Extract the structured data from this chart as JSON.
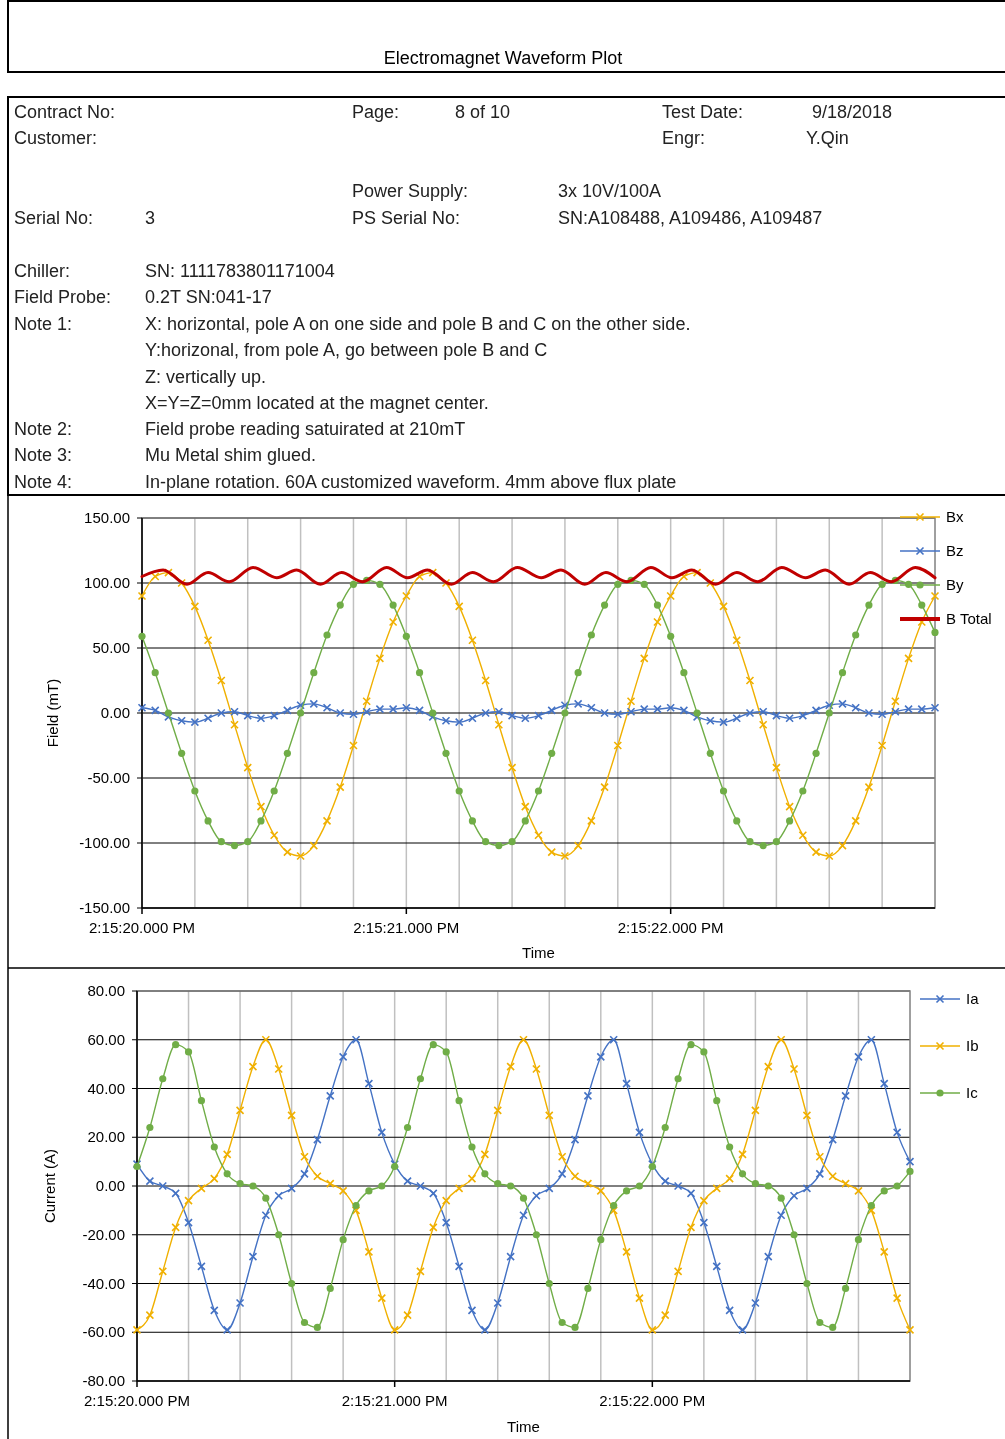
{
  "chart_data": [
    {
      "type": "other",
      "title": "Electromagnet Waveform Plot",
      "annotations": [
        "Contract No:",
        "Page:",
        "8 of 10",
        "Test Date:",
        "9/18/2018",
        "Customer:",
        "Engr:",
        "Y.Qin",
        "Serial No:",
        "3",
        "Power Supply:",
        "3x 10V/100A",
        "PS Serial No:",
        "SN:A108488, A109486, A109487",
        "Chiller:",
        "SN: 1111783801171004",
        "Field Probe:",
        "0.2T SN:041-17",
        "Note 1:",
        "X: horizontal, pole A on one side and pole B and C on the other side.",
        "Y:horizonal, from pole A, go between pole B and C",
        "Z: vertically up.",
        "X=Y=Z=0mm located at the magnet center.",
        "Note 2:",
        "Field probe reading satuirated at 210mT",
        "Note 3:",
        "Mu Metal shim glued.",
        "Note 4:",
        "In-plane rotation. 60A customized waveform. 4mm above flux plate"
      ]
    },
    {
      "type": "line",
      "xlabel": "Time",
      "ylabel": "Field (mT)",
      "grid": true,
      "legend": "right",
      "xlim": [
        "2018-09-18T14:15:20.000",
        "2018-09-18T14:15:23.000"
      ],
      "ylim": [
        -150,
        150
      ],
      "yticks": [
        {
          "value": -150,
          "label": "-150.00"
        },
        {
          "value": -100,
          "label": "-100.00"
        },
        {
          "value": -50,
          "label": "-50.00"
        },
        {
          "value": 0,
          "label": "0.00"
        },
        {
          "value": 50,
          "label": "50.00"
        },
        {
          "value": 100,
          "label": "100.00"
        },
        {
          "value": 150,
          "label": "150.00"
        }
      ],
      "xticks": [
        {
          "value": "2018-09-18T14:15:20.000",
          "label": "2:15:20.000 PM"
        },
        {
          "value": "2018-09-18T14:15:20.200",
          "label": null
        },
        {
          "value": "2018-09-18T14:15:20.400",
          "label": null
        },
        {
          "value": "2018-09-18T14:15:20.600",
          "label": null
        },
        {
          "value": "2018-09-18T14:15:20.800",
          "label": null
        },
        {
          "value": "2018-09-18T14:15:21.000",
          "label": "2:15:21.000 PM"
        },
        {
          "value": "2018-09-18T14:15:21.200",
          "label": null
        },
        {
          "value": "2018-09-18T14:15:21.400",
          "label": null
        },
        {
          "value": "2018-09-18T14:15:21.600",
          "label": null
        },
        {
          "value": "2018-09-18T14:15:21.800",
          "label": null
        },
        {
          "value": "2018-09-18T14:15:22.000",
          "label": "2:15:22.000 PM"
        },
        {
          "value": "2018-09-18T14:15:22.200",
          "label": null
        },
        {
          "value": "2018-09-18T14:15:22.400",
          "label": null
        },
        {
          "value": "2018-09-18T14:15:22.600",
          "label": null
        },
        {
          "value": "2018-09-18T14:15:22.800",
          "label": null
        }
      ],
      "x": [
        "2018-09-18T14:15:20.000",
        "2018-09-18T14:15:20.050",
        "2018-09-18T14:15:20.100",
        "2018-09-18T14:15:20.150",
        "2018-09-18T14:15:20.200",
        "2018-09-18T14:15:20.250",
        "2018-09-18T14:15:20.300",
        "2018-09-18T14:15:20.350",
        "2018-09-18T14:15:20.400",
        "2018-09-18T14:15:20.450",
        "2018-09-18T14:15:20.500",
        "2018-09-18T14:15:20.550",
        "2018-09-18T14:15:20.600",
        "2018-09-18T14:15:20.650",
        "2018-09-18T14:15:20.700",
        "2018-09-18T14:15:20.750",
        "2018-09-18T14:15:20.800",
        "2018-09-18T14:15:20.850",
        "2018-09-18T14:15:20.900",
        "2018-09-18T14:15:20.950",
        "2018-09-18T14:15:21.000",
        "2018-09-18T14:15:21.050",
        "2018-09-18T14:15:21.100",
        "2018-09-18T14:15:21.150",
        "2018-09-18T14:15:21.200",
        "2018-09-18T14:15:21.250",
        "2018-09-18T14:15:21.300",
        "2018-09-18T14:15:21.350",
        "2018-09-18T14:15:21.400",
        "2018-09-18T14:15:21.450",
        "2018-09-18T14:15:21.500",
        "2018-09-18T14:15:21.550",
        "2018-09-18T14:15:21.600",
        "2018-09-18T14:15:21.650",
        "2018-09-18T14:15:21.700",
        "2018-09-18T14:15:21.750",
        "2018-09-18T14:15:21.800",
        "2018-09-18T14:15:21.850",
        "2018-09-18T14:15:21.900",
        "2018-09-18T14:15:21.950",
        "2018-09-18T14:15:22.000",
        "2018-09-18T14:15:22.050",
        "2018-09-18T14:15:22.100",
        "2018-09-18T14:15:22.150",
        "2018-09-18T14:15:22.200",
        "2018-09-18T14:15:22.250",
        "2018-09-18T14:15:22.300",
        "2018-09-18T14:15:22.350",
        "2018-09-18T14:15:22.400",
        "2018-09-18T14:15:22.450",
        "2018-09-18T14:15:22.500",
        "2018-09-18T14:15:22.550",
        "2018-09-18T14:15:22.600",
        "2018-09-18T14:15:22.650",
        "2018-09-18T14:15:22.700",
        "2018-09-18T14:15:22.750",
        "2018-09-18T14:15:22.800",
        "2018-09-18T14:15:22.850",
        "2018-09-18T14:15:22.900",
        "2018-09-18T14:15:22.950",
        "2018-09-18T14:15:23.000"
      ],
      "series": [
        {
          "name": "Bx",
          "color": "#f0b000",
          "marker": "cross",
          "values": [
            90,
            105,
            108,
            100,
            82,
            56,
            25,
            -9,
            -42,
            -72,
            -94,
            -107,
            -110,
            -102,
            -83,
            -57,
            -25,
            9,
            42,
            70,
            90,
            105,
            108,
            100,
            82,
            56,
            25,
            -9,
            -42,
            -72,
            -94,
            -107,
            -110,
            -102,
            -83,
            -57,
            -25,
            9,
            42,
            70,
            90,
            105,
            108,
            100,
            82,
            56,
            25,
            -9,
            -42,
            -72,
            -94,
            -107,
            -110,
            -102,
            -83,
            -57,
            -25,
            9,
            42,
            70,
            90
          ]
        },
        {
          "name": "Bz",
          "color": "#4472c4",
          "marker": "cross",
          "values": [
            4,
            2,
            -3,
            -6,
            -7,
            -4,
            0,
            1,
            -2,
            -4,
            -2,
            2,
            6,
            7,
            4,
            0,
            -1,
            1,
            3,
            3,
            4,
            2,
            -3,
            -6,
            -7,
            -4,
            0,
            1,
            -2,
            -4,
            -2,
            2,
            6,
            7,
            4,
            0,
            -1,
            1,
            3,
            3,
            4,
            2,
            -3,
            -6,
            -7,
            -4,
            0,
            1,
            -2,
            -4,
            -2,
            2,
            6,
            7,
            4,
            0,
            -1,
            1,
            3,
            3,
            4
          ]
        },
        {
          "name": "By",
          "color": "#70ad47",
          "marker": "circle",
          "values": [
            59,
            31,
            0,
            -31,
            -60,
            -83,
            -99,
            -102,
            -99,
            -83,
            -60,
            -31,
            0,
            31,
            60,
            83,
            99,
            102,
            99,
            83,
            59,
            31,
            0,
            -31,
            -60,
            -83,
            -99,
            -102,
            -99,
            -83,
            -60,
            -31,
            0,
            31,
            60,
            83,
            99,
            102,
            99,
            83,
            59,
            31,
            0,
            -31,
            -60,
            -83,
            -99,
            -102,
            -99,
            -83,
            -60,
            -31,
            0,
            31,
            60,
            83,
            99,
            102,
            99,
            83,
            62
          ]
        },
        {
          "name": "B Total",
          "color": "#c00000",
          "marker": "none",
          "x": [
            "2018-09-18T14:15:20.000",
            "2018-09-18T14:15:20.080",
            "2018-09-18T14:15:20.170",
            "2018-09-18T14:15:20.250",
            "2018-09-18T14:15:20.330",
            "2018-09-18T14:15:20.420",
            "2018-09-18T14:15:20.510",
            "2018-09-18T14:15:20.585",
            "2018-09-18T14:15:20.675",
            "2018-09-18T14:15:20.755",
            "2018-09-18T14:15:20.835",
            "2018-09-18T14:15:20.925",
            "2018-09-18T14:15:21.005",
            "2018-09-18T14:15:21.080",
            "2018-09-18T14:15:21.170",
            "2018-09-18T14:15:21.250",
            "2018-09-18T14:15:21.330",
            "2018-09-18T14:15:21.420",
            "2018-09-18T14:15:21.510",
            "2018-09-18T14:15:21.585",
            "2018-09-18T14:15:21.675",
            "2018-09-18T14:15:21.755",
            "2018-09-18T14:15:21.835",
            "2018-09-18T14:15:21.925",
            "2018-09-18T14:15:22.005",
            "2018-09-18T14:15:22.080",
            "2018-09-18T14:15:22.170",
            "2018-09-18T14:15:22.250",
            "2018-09-18T14:15:22.330",
            "2018-09-18T14:15:22.420",
            "2018-09-18T14:15:22.510",
            "2018-09-18T14:15:22.585",
            "2018-09-18T14:15:22.675",
            "2018-09-18T14:15:22.755",
            "2018-09-18T14:15:22.835",
            "2018-09-18T14:15:22.925",
            "2018-09-18T14:15:23.000"
          ],
          "values": [
            105,
            110,
            99,
            108,
            101,
            112,
            104,
            110,
            99,
            108,
            101,
            112,
            104,
            110,
            99,
            108,
            101,
            112,
            104,
            110,
            99,
            108,
            101,
            112,
            104,
            110,
            99,
            108,
            101,
            112,
            104,
            110,
            99,
            108,
            101,
            112,
            104
          ]
        }
      ]
    },
    {
      "type": "line",
      "xlabel": "Time",
      "ylabel": "Current (A)",
      "grid": true,
      "legend": "right",
      "xlim": [
        "2018-09-18T14:15:20.000",
        "2018-09-18T14:15:23.000"
      ],
      "ylim": [
        -80,
        80
      ],
      "yticks": [
        {
          "value": -80,
          "label": "-80.00"
        },
        {
          "value": -60,
          "label": "-60.00"
        },
        {
          "value": -40,
          "label": "-40.00"
        },
        {
          "value": -20,
          "label": "-20.00"
        },
        {
          "value": 0,
          "label": "0.00"
        },
        {
          "value": 20,
          "label": "20.00"
        },
        {
          "value": 40,
          "label": "40.00"
        },
        {
          "value": 60,
          "label": "60.00"
        },
        {
          "value": 80,
          "label": "80.00"
        }
      ],
      "xticks": [
        {
          "value": "2018-09-18T14:15:20.000",
          "label": "2:15:20.000 PM"
        },
        {
          "value": "2018-09-18T14:15:20.200",
          "label": null
        },
        {
          "value": "2018-09-18T14:15:20.400",
          "label": null
        },
        {
          "value": "2018-09-18T14:15:20.600",
          "label": null
        },
        {
          "value": "2018-09-18T14:15:20.800",
          "label": null
        },
        {
          "value": "2018-09-18T14:15:21.000",
          "label": "2:15:21.000 PM"
        },
        {
          "value": "2018-09-18T14:15:21.200",
          "label": null
        },
        {
          "value": "2018-09-18T14:15:21.400",
          "label": null
        },
        {
          "value": "2018-09-18T14:15:21.600",
          "label": null
        },
        {
          "value": "2018-09-18T14:15:21.800",
          "label": null
        },
        {
          "value": "2018-09-18T14:15:22.000",
          "label": "2:15:22.000 PM"
        },
        {
          "value": "2018-09-18T14:15:22.200",
          "label": null
        },
        {
          "value": "2018-09-18T14:15:22.400",
          "label": null
        },
        {
          "value": "2018-09-18T14:15:22.600",
          "label": null
        },
        {
          "value": "2018-09-18T14:15:22.800",
          "label": null
        }
      ],
      "x": [
        "2018-09-18T14:15:20.000",
        "2018-09-18T14:15:20.050",
        "2018-09-18T14:15:20.100",
        "2018-09-18T14:15:20.150",
        "2018-09-18T14:15:20.200",
        "2018-09-18T14:15:20.250",
        "2018-09-18T14:15:20.300",
        "2018-09-18T14:15:20.350",
        "2018-09-18T14:15:20.400",
        "2018-09-18T14:15:20.450",
        "2018-09-18T14:15:20.500",
        "2018-09-18T14:15:20.550",
        "2018-09-18T14:15:20.600",
        "2018-09-18T14:15:20.650",
        "2018-09-18T14:15:20.700",
        "2018-09-18T14:15:20.750",
        "2018-09-18T14:15:20.800",
        "2018-09-18T14:15:20.850",
        "2018-09-18T14:15:20.900",
        "2018-09-18T14:15:20.950",
        "2018-09-18T14:15:21.000",
        "2018-09-18T14:15:21.050",
        "2018-09-18T14:15:21.100",
        "2018-09-18T14:15:21.150",
        "2018-09-18T14:15:21.200",
        "2018-09-18T14:15:21.250",
        "2018-09-18T14:15:21.300",
        "2018-09-18T14:15:21.350",
        "2018-09-18T14:15:21.400",
        "2018-09-18T14:15:21.450",
        "2018-09-18T14:15:21.500",
        "2018-09-18T14:15:21.550",
        "2018-09-18T14:15:21.600",
        "2018-09-18T14:15:21.650",
        "2018-09-18T14:15:21.700",
        "2018-09-18T14:15:21.750",
        "2018-09-18T14:15:21.800",
        "2018-09-18T14:15:21.850",
        "2018-09-18T14:15:21.900",
        "2018-09-18T14:15:21.950",
        "2018-09-18T14:15:22.000",
        "2018-09-18T14:15:22.050",
        "2018-09-18T14:15:22.100",
        "2018-09-18T14:15:22.150",
        "2018-09-18T14:15:22.200",
        "2018-09-18T14:15:22.250",
        "2018-09-18T14:15:22.300",
        "2018-09-18T14:15:22.350",
        "2018-09-18T14:15:22.400",
        "2018-09-18T14:15:22.450",
        "2018-09-18T14:15:22.500",
        "2018-09-18T14:15:22.550",
        "2018-09-18T14:15:22.600",
        "2018-09-18T14:15:22.650",
        "2018-09-18T14:15:22.700",
        "2018-09-18T14:15:22.750",
        "2018-09-18T14:15:22.800",
        "2018-09-18T14:15:22.850",
        "2018-09-18T14:15:22.900",
        "2018-09-18T14:15:22.950",
        "2018-09-18T14:15:23.000"
      ],
      "series": [
        {
          "name": "Ia",
          "color": "#4472c4",
          "marker": "cross",
          "values": [
            9,
            2,
            0,
            -3,
            -15,
            -33,
            -51,
            -59,
            -48,
            -29,
            -12,
            -4,
            -1,
            5,
            19,
            37,
            53,
            60,
            42,
            22,
            9,
            2,
            0,
            -3,
            -15,
            -33,
            -51,
            -59,
            -48,
            -29,
            -12,
            -4,
            -1,
            5,
            19,
            37,
            53,
            60,
            42,
            22,
            9,
            2,
            0,
            -3,
            -15,
            -33,
            -51,
            -59,
            -48,
            -29,
            -12,
            -4,
            -1,
            5,
            19,
            37,
            53,
            60,
            42,
            22,
            10
          ]
        },
        {
          "name": "Ib",
          "color": "#f0b000",
          "marker": "cross",
          "values": [
            -59,
            -53,
            -35,
            -17,
            -6,
            -1,
            3,
            13,
            31,
            49,
            60,
            48,
            29,
            12,
            4,
            1,
            -2,
            -10,
            -27,
            -46,
            -59,
            -53,
            -35,
            -17,
            -6,
            -1,
            3,
            13,
            31,
            49,
            60,
            48,
            29,
            12,
            4,
            1,
            -2,
            -10,
            -27,
            -46,
            -59,
            -53,
            -35,
            -17,
            -6,
            -1,
            3,
            13,
            31,
            49,
            60,
            48,
            29,
            12,
            4,
            1,
            -2,
            -10,
            -27,
            -46,
            -59
          ]
        },
        {
          "name": "Ic",
          "color": "#70ad47",
          "marker": "circle",
          "values": [
            8,
            24,
            44,
            58,
            55,
            35,
            16,
            5,
            1,
            0,
            -5,
            -20,
            -40,
            -56,
            -58,
            -42,
            -22,
            -8,
            -2,
            0,
            8,
            24,
            44,
            58,
            55,
            35,
            16,
            5,
            1,
            0,
            -5,
            -20,
            -40,
            -56,
            -58,
            -42,
            -22,
            -8,
            -2,
            0,
            8,
            24,
            44,
            58,
            55,
            35,
            16,
            5,
            1,
            0,
            -5,
            -20,
            -40,
            -56,
            -58,
            -42,
            -22,
            -8,
            -2,
            0,
            6
          ]
        }
      ]
    }
  ]
}
